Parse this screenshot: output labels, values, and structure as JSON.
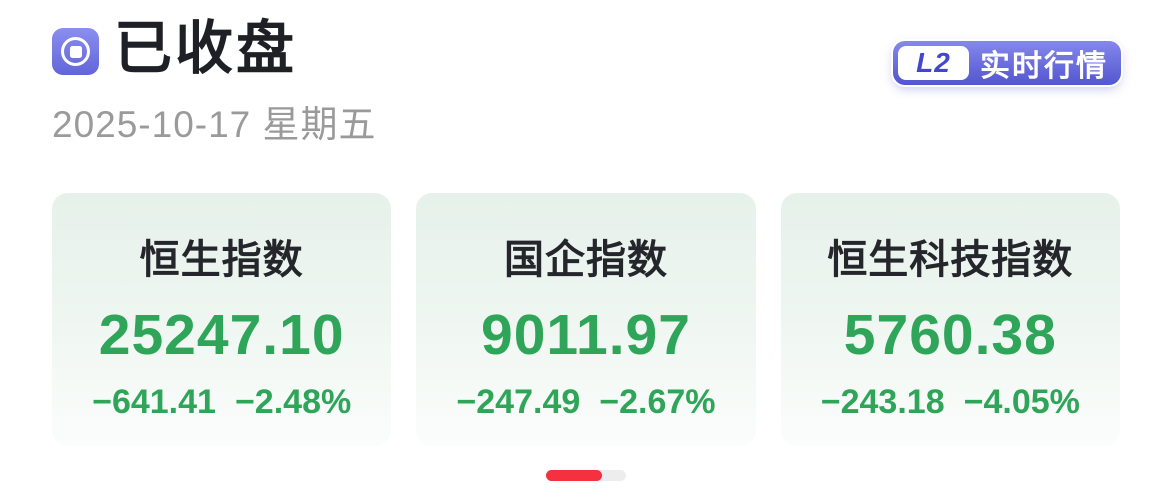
{
  "header": {
    "status_title": "已收盘",
    "date": "2025-10-17 星期五",
    "badge": {
      "level": "L2",
      "label": "实时行情"
    }
  },
  "icons": {
    "header_icon": "stop-record-icon"
  },
  "indices": [
    {
      "name": "恒生指数",
      "value": "25247.10",
      "change": "−641.41",
      "change_pct": "−2.48%"
    },
    {
      "name": "国企指数",
      "value": "9011.97",
      "change": "−247.49",
      "change_pct": "−2.67%"
    },
    {
      "name": "恒生科技指数",
      "value": "5760.38",
      "change": "−243.18",
      "change_pct": "−4.05%"
    }
  ],
  "pagination": {
    "pages": 2,
    "active_index": 0
  },
  "colors": {
    "accent_purple": "#6165d9",
    "down_green": "#2ea558",
    "pager_red": "#f4313f",
    "card_bg_top": "#e6f1ea",
    "date_gray": "#9a9a9a",
    "title_dark": "#1e2025"
  }
}
